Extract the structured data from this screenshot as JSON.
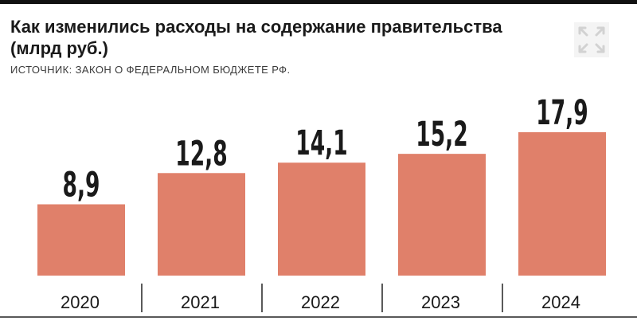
{
  "title": "Как изменились расходы на содержание правительства (млрд руб.)",
  "source": "ИСТОЧНИК: ЗАКОН О ФЕДЕРАЛЬНОМ БЮДЖЕТЕ РФ.",
  "colors": {
    "bar": "#e0806a",
    "text": "#1a1a1a",
    "axis": "#222222"
  },
  "logo_icon": "expand-arrows-icon",
  "chart_data": {
    "type": "bar",
    "title": "Как изменились расходы на содержание правительства (млрд руб.)",
    "categories": [
      "2020",
      "2021",
      "2022",
      "2023",
      "2024"
    ],
    "values": [
      8.9,
      12.8,
      14.1,
      15.2,
      17.9
    ],
    "value_labels": [
      "8,9",
      "12,8",
      "14,1",
      "15,2",
      "17,9"
    ],
    "ylim": [
      0,
      17.9
    ],
    "grid": false,
    "legend": "none"
  }
}
